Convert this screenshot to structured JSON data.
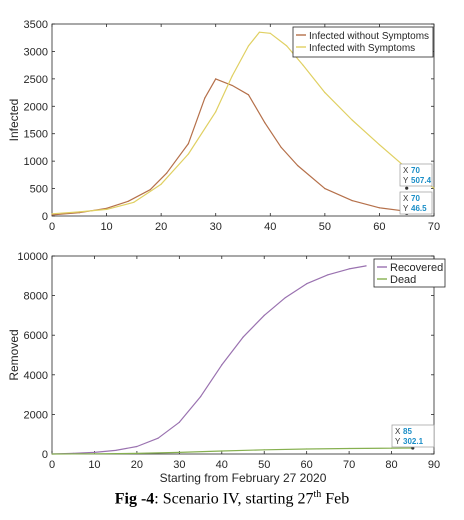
{
  "chart_data": [
    {
      "type": "line",
      "title": "",
      "xlabel": "",
      "ylabel": "Infected",
      "xlim": [
        0,
        70
      ],
      "ylim": [
        0,
        3500
      ],
      "xticks": [
        0,
        10,
        20,
        30,
        40,
        50,
        60,
        70
      ],
      "yticks": [
        0,
        500,
        1000,
        1500,
        2000,
        2500,
        3000,
        3500
      ],
      "grid": false,
      "legend_position": "top-right",
      "series": [
        {
          "name": "Infected without Symptoms",
          "color": "#b5704a",
          "x": [
            0,
            5,
            10,
            14,
            18,
            21,
            25,
            28,
            30,
            33,
            36,
            39,
            42,
            45,
            50,
            55,
            60,
            65
          ],
          "values": [
            20,
            60,
            140,
            270,
            480,
            780,
            1320,
            2150,
            2500,
            2380,
            2210,
            1700,
            1250,
            920,
            500,
            280,
            150,
            85
          ]
        },
        {
          "name": "Infected with Symptoms",
          "color": "#e0d062",
          "x": [
            0,
            5,
            10,
            15,
            20,
            25,
            30,
            33,
            36,
            38,
            40,
            43,
            46,
            50,
            55,
            60,
            65,
            70
          ],
          "values": [
            40,
            75,
            120,
            250,
            580,
            1130,
            1900,
            2550,
            3100,
            3350,
            3330,
            3100,
            2750,
            2250,
            1750,
            1300,
            870,
            507.4
          ]
        }
      ],
      "datatips": [
        {
          "x_label": "X",
          "x_value": "70",
          "y_label": "Y",
          "y_value": "507.4"
        },
        {
          "x_label": "X",
          "x_value": "70",
          "y_label": "Y",
          "y_value": "46.5"
        }
      ]
    },
    {
      "type": "line",
      "title": "",
      "xlabel": "Starting from February 27 2020",
      "ylabel": "Removed",
      "xlim": [
        0,
        90
      ],
      "ylim": [
        0,
        10000
      ],
      "xticks": [
        0,
        10,
        20,
        30,
        40,
        50,
        60,
        70,
        80,
        90
      ],
      "yticks": [
        0,
        2000,
        4000,
        6000,
        8000,
        10000
      ],
      "grid": false,
      "legend_position": "top-right",
      "series": [
        {
          "name": "Recovered",
          "color": "#9a72b0",
          "x": [
            0,
            5,
            10,
            15,
            20,
            25,
            30,
            35,
            40,
            45,
            50,
            55,
            60,
            65,
            70,
            74
          ],
          "values": [
            0,
            30,
            80,
            180,
            380,
            800,
            1600,
            2900,
            4500,
            5900,
            7000,
            7900,
            8600,
            9050,
            9350,
            9500
          ]
        },
        {
          "name": "Dead",
          "color": "#86b050",
          "x": [
            0,
            10,
            20,
            30,
            40,
            50,
            60,
            70,
            80,
            85
          ],
          "values": [
            0,
            10,
            30,
            80,
            150,
            210,
            255,
            280,
            295,
            302.1
          ]
        }
      ],
      "datatips": [
        {
          "x_label": "X",
          "x_value": "85",
          "y_label": "Y",
          "y_value": "302.1"
        }
      ]
    }
  ],
  "caption": {
    "label": "Fig -4",
    "text_before_sup": ": Scenario IV, starting 27",
    "sup": "th",
    "text_after_sup": " Feb"
  }
}
